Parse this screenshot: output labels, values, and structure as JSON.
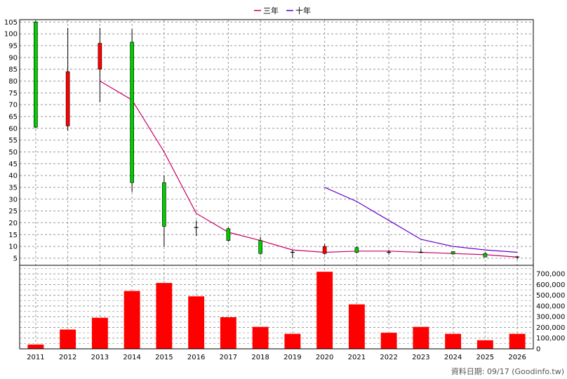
{
  "legend": [
    {
      "label": "三年",
      "color": "#cc0066"
    },
    {
      "label": "十年",
      "color": "#6600cc"
    }
  ],
  "footer_text": "資料日期: 09/17  (Goodinfo.tw)",
  "chart_data": [
    {
      "type": "candlestick",
      "x": [
        "2011",
        "2012",
        "2013",
        "2014",
        "2015",
        "2016",
        "2017",
        "2018",
        "2019",
        "2020",
        "2021",
        "2022",
        "2023",
        "2024",
        "2025",
        "2026"
      ],
      "ylim": [
        2,
        106
      ],
      "yticks": [
        5,
        10,
        15,
        20,
        25,
        30,
        35,
        40,
        45,
        50,
        55,
        60,
        65,
        70,
        75,
        80,
        85,
        90,
        95,
        100,
        105
      ],
      "grid": true,
      "candles": [
        {
          "x": "2011",
          "open": 60.5,
          "close": 105,
          "high": 105.5,
          "low": 60,
          "color": "#00cc00"
        },
        {
          "x": "2012",
          "open": 84,
          "close": 61,
          "high": 102.5,
          "low": 59,
          "color": "#ff0000"
        },
        {
          "x": "2013",
          "open": 96,
          "close": 85,
          "high": 102.5,
          "low": 71,
          "color": "#ff0000"
        },
        {
          "x": "2014",
          "open": 37,
          "close": 96.5,
          "high": 102,
          "low": 33,
          "color": "#00cc00"
        },
        {
          "x": "2015",
          "open": 18.5,
          "close": 37,
          "high": 40,
          "low": 10,
          "color": "#00cc00"
        },
        {
          "x": "2016",
          "open": 18,
          "close": 18,
          "high": 21,
          "low": 14.5,
          "color": "#000000"
        },
        {
          "x": "2017",
          "open": 12.5,
          "close": 17.5,
          "high": 18,
          "low": 12,
          "color": "#00cc00"
        },
        {
          "x": "2018",
          "open": 7,
          "close": 12.5,
          "high": 14,
          "low": 6.5,
          "color": "#00cc00"
        },
        {
          "x": "2019",
          "open": 7.5,
          "close": 7.5,
          "high": 8.5,
          "low": 5,
          "color": "#000000"
        },
        {
          "x": "2020",
          "open": 10,
          "close": 7,
          "high": 11,
          "low": 6.5,
          "color": "#ff0000"
        },
        {
          "x": "2021",
          "open": 7.5,
          "close": 9.5,
          "high": 10,
          "low": 7,
          "color": "#00cc00"
        },
        {
          "x": "2022",
          "open": 7.5,
          "close": 7.5,
          "high": 8.5,
          "low": 6.5,
          "color": "#000000"
        },
        {
          "x": "2023",
          "open": 7.5,
          "close": 7.5,
          "high": 9,
          "low": 7,
          "color": "#000000"
        },
        {
          "x": "2024",
          "open": 6.8,
          "close": 7.8,
          "high": 8,
          "low": 6.5,
          "color": "#00cc00"
        },
        {
          "x": "2025",
          "open": 5.5,
          "close": 7,
          "high": 7.5,
          "low": 5.5,
          "color": "#00cc00"
        },
        {
          "x": "2026",
          "open": 5.5,
          "close": 5.5,
          "high": 6,
          "low": 4.5,
          "color": "#000000"
        }
      ],
      "series": [
        {
          "name": "三年",
          "color": "#cc0066",
          "points": [
            [
              "2013",
              80
            ],
            [
              "2014",
              72
            ],
            [
              "2015",
              50
            ],
            [
              "2016",
              24
            ],
            [
              "2017",
              16
            ],
            [
              "2018",
              12.5
            ],
            [
              "2019",
              8.5
            ],
            [
              "2020",
              7.5
            ],
            [
              "2021",
              8
            ],
            [
              "2022",
              8
            ],
            [
              "2023",
              7.5
            ],
            [
              "2024",
              7
            ],
            [
              "2025",
              6.5
            ],
            [
              "2026",
              5.5
            ]
          ]
        },
        {
          "name": "十年",
          "color": "#6600cc",
          "points": [
            [
              "2020",
              35
            ],
            [
              "2021",
              29
            ],
            [
              "2022",
              21
            ],
            [
              "2023",
              13
            ],
            [
              "2024",
              10
            ],
            [
              "2025",
              8.5
            ],
            [
              "2026",
              7.5
            ]
          ]
        }
      ]
    },
    {
      "type": "bar",
      "x": [
        "2011",
        "2012",
        "2013",
        "2014",
        "2015",
        "2016",
        "2017",
        "2018",
        "2019",
        "2020",
        "2021",
        "2022",
        "2023",
        "2024",
        "2025",
        "2026"
      ],
      "values": [
        40000,
        180000,
        290000,
        540000,
        615000,
        490000,
        295000,
        205000,
        140000,
        720000,
        415000,
        150000,
        205000,
        140000,
        80000,
        140000
      ],
      "ylim": [
        0,
        780000
      ],
      "yticks": [
        "0",
        "100,000",
        "200,000",
        "300,000",
        "400,000",
        "500,000",
        "600,000",
        "700,000"
      ],
      "color": "#ff0000",
      "grid": true
    }
  ]
}
